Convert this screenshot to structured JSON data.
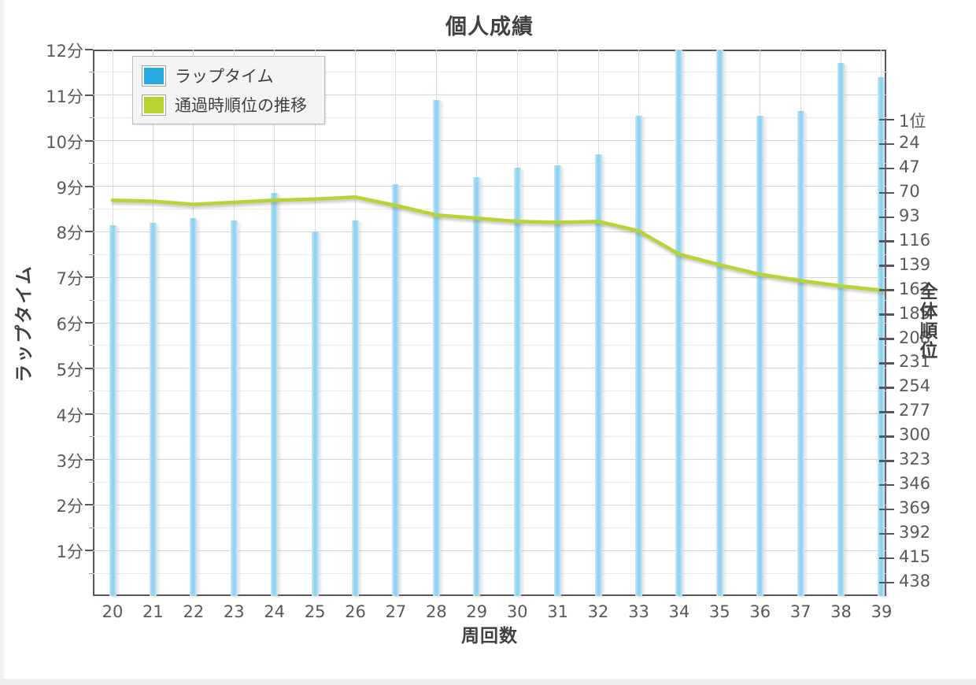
{
  "chart_data": {
    "type": "bar",
    "title": "個人成績",
    "xlabel": "周回数",
    "ylabel_left": "ラップタイム",
    "ylabel_right": "全体順位",
    "categories": [
      20,
      21,
      22,
      23,
      24,
      25,
      26,
      27,
      28,
      29,
      30,
      31,
      32,
      33,
      34,
      35,
      36,
      37,
      38,
      39
    ],
    "series": [
      {
        "name": "ラップタイム",
        "type": "bar",
        "axis": "left",
        "unit": "分",
        "color": "#92d3ef",
        "values": [
          8.15,
          8.2,
          8.3,
          8.25,
          8.85,
          8.0,
          8.25,
          9.05,
          10.9,
          9.2,
          9.4,
          9.45,
          9.7,
          10.55,
          12.0,
          12.0,
          10.55,
          10.65,
          11.7,
          11.4
        ]
      },
      {
        "name": "通過時順位の推移",
        "type": "line",
        "axis": "right",
        "unit": "位",
        "color": "#b6d434",
        "values": [
          77,
          78,
          81,
          79,
          77,
          76,
          74,
          82,
          91,
          94,
          97,
          98,
          97,
          106,
          128,
          138,
          147,
          153,
          158,
          162
        ]
      }
    ],
    "left_axis": {
      "min": 0,
      "max": 12,
      "tick_step": 1,
      "tick_labels_top_to_bottom": [
        "12分",
        "11分",
        "10分",
        "9分",
        "8分",
        "7分",
        "6分",
        "5分",
        "4分",
        "3分",
        "2分",
        "1分"
      ],
      "minor_grid_step": 0.5,
      "grid": true
    },
    "right_axis": {
      "inverted": true,
      "min": 1,
      "max": 438,
      "tick_step": 23,
      "tick_values": [
        1,
        24,
        47,
        70,
        93,
        116,
        139,
        162,
        185,
        208,
        231,
        254,
        277,
        300,
        323,
        346,
        369,
        392,
        415,
        438
      ],
      "tick_labels": [
        "1位",
        "24",
        "47",
        "70",
        "93",
        "116",
        "139",
        "162",
        "185",
        "208",
        "231",
        "254",
        "277",
        "300",
        "323",
        "346",
        "369",
        "392",
        "415",
        "438"
      ]
    },
    "legend": {
      "position": "top-left",
      "entries": [
        {
          "label": "ラップタイム",
          "swatch_color": "#29abe2"
        },
        {
          "label": "通過時順位の推移",
          "swatch_color": "#b8d22e"
        }
      ]
    },
    "colors": {
      "bar_fill": "#92d3ef",
      "bar_edge": "#cdeaf7",
      "line": "#b6d434",
      "frame": "#58585a",
      "grid_major": "#d6d6d6",
      "grid_minor": "#ececec",
      "text": "#58595b",
      "title_text": "#414042"
    }
  }
}
